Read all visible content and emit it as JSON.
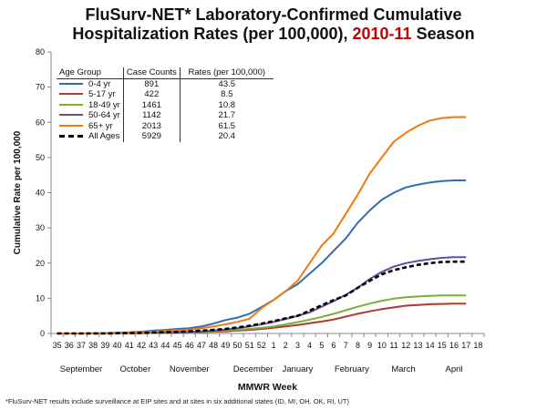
{
  "title": {
    "line1": "FluSurv-NET* Laboratory-Confirmed Cumulative",
    "line2_pre": "Hospitalization Rates (per 100,000), ",
    "line2_highlight": "2010-11",
    "line2_post": " Season"
  },
  "footnote": "*FluSurv-NET results include surveillance at EIP sites and at sites in six additional states (ID, MI, OH, OK, RI, UT)",
  "chart_data": {
    "type": "line",
    "xlabel": "MMWR Week",
    "ylabel": "Cumulative Rate per 100,000",
    "ylim": [
      0,
      80
    ],
    "yticks": [
      0,
      10,
      20,
      30,
      40,
      50,
      60,
      70,
      80
    ],
    "grid": false,
    "categories": [
      "35",
      "36",
      "37",
      "38",
      "39",
      "40",
      "41",
      "42",
      "43",
      "44",
      "45",
      "46",
      "47",
      "48",
      "49",
      "50",
      "51",
      "52",
      "1",
      "2",
      "3",
      "4",
      "5",
      "6",
      "7",
      "8",
      "9",
      "10",
      "11",
      "12",
      "13",
      "14",
      "15",
      "16",
      "17",
      "18"
    ],
    "months": [
      "September",
      "October",
      "November",
      "December",
      "January",
      "February",
      "March",
      "April"
    ],
    "legend": {
      "placement": "top-left",
      "headers": [
        "Age Group",
        "Case Counts",
        "Rates (per 100,000)"
      ]
    },
    "series": [
      {
        "name": "0-4 yr",
        "cases": "891",
        "rate": "43.5",
        "color": "#2e6db4",
        "dashed": false,
        "values": [
          0,
          0,
          0,
          0.05,
          0.1,
          0.2,
          0.3,
          0.5,
          0.8,
          1.0,
          1.3,
          1.5,
          2.0,
          2.8,
          3.8,
          4.5,
          5.6,
          7.5,
          9.5,
          12,
          14,
          17,
          20,
          23.5,
          27,
          31.5,
          35,
          38,
          40,
          41.5,
          42.3,
          42.9,
          43.3,
          43.5,
          43.5,
          null
        ]
      },
      {
        "name": "5-17 yr",
        "cases": "422",
        "rate": "8.5",
        "color": "#b03a2e",
        "dashed": false,
        "values": [
          0,
          0,
          0,
          0,
          0,
          0.05,
          0.08,
          0.1,
          0.15,
          0.2,
          0.25,
          0.3,
          0.4,
          0.5,
          0.6,
          0.8,
          1.0,
          1.3,
          1.6,
          2.0,
          2.4,
          2.9,
          3.4,
          4.0,
          4.8,
          5.6,
          6.3,
          6.9,
          7.4,
          7.9,
          8.1,
          8.3,
          8.4,
          8.5,
          8.5,
          null
        ]
      },
      {
        "name": "18-49 yr",
        "cases": "1461",
        "rate": "10.8",
        "color": "#7cae3a",
        "dashed": false,
        "values": [
          0,
          0,
          0,
          0,
          0,
          0.05,
          0.08,
          0.1,
          0.15,
          0.2,
          0.3,
          0.35,
          0.5,
          0.6,
          0.8,
          1.0,
          1.3,
          1.6,
          2.0,
          2.6,
          3.2,
          3.9,
          4.7,
          5.6,
          6.6,
          7.6,
          8.5,
          9.3,
          9.9,
          10.3,
          10.5,
          10.7,
          10.8,
          10.8,
          10.8,
          null
        ]
      },
      {
        "name": "50-64 yr",
        "cases": "1142",
        "rate": "21.7",
        "color": "#6a4a9c",
        "dashed": false,
        "values": [
          0,
          0,
          0,
          0,
          0,
          0.05,
          0.1,
          0.15,
          0.2,
          0.3,
          0.35,
          0.45,
          0.6,
          0.8,
          1.1,
          1.5,
          2.0,
          2.6,
          3.3,
          4.1,
          5.0,
          6.0,
          7.6,
          9.2,
          11,
          13,
          15.5,
          17.5,
          19,
          20,
          20.6,
          21.1,
          21.5,
          21.7,
          21.7,
          null
        ]
      },
      {
        "name": "65+ yr",
        "cases": "2013",
        "rate": "61.5",
        "color": "#f07a12",
        "dashed": false,
        "values": [
          0,
          0,
          0,
          0,
          0,
          0.1,
          0.2,
          0.3,
          0.5,
          0.7,
          0.9,
          1.1,
          1.5,
          2.0,
          2.6,
          3.3,
          4.2,
          7.2,
          9.5,
          12,
          15,
          20,
          25,
          28.5,
          34,
          39.5,
          45.5,
          50,
          54.5,
          57,
          59,
          60.5,
          61.2,
          61.5,
          61.5,
          null
        ]
      },
      {
        "name": "All Ages",
        "cases": "5929",
        "rate": "20.4",
        "color": "#000000",
        "dashed": true,
        "values": [
          0,
          0,
          0,
          0,
          0,
          0.08,
          0.1,
          0.15,
          0.25,
          0.35,
          0.45,
          0.6,
          0.8,
          1.0,
          1.3,
          1.7,
          2.2,
          2.8,
          3.5,
          4.3,
          5.0,
          6.5,
          8.0,
          9.5,
          10.8,
          13,
          15,
          16.8,
          18,
          18.8,
          19.5,
          20,
          20.3,
          20.4,
          20.4,
          null
        ]
      }
    ]
  }
}
